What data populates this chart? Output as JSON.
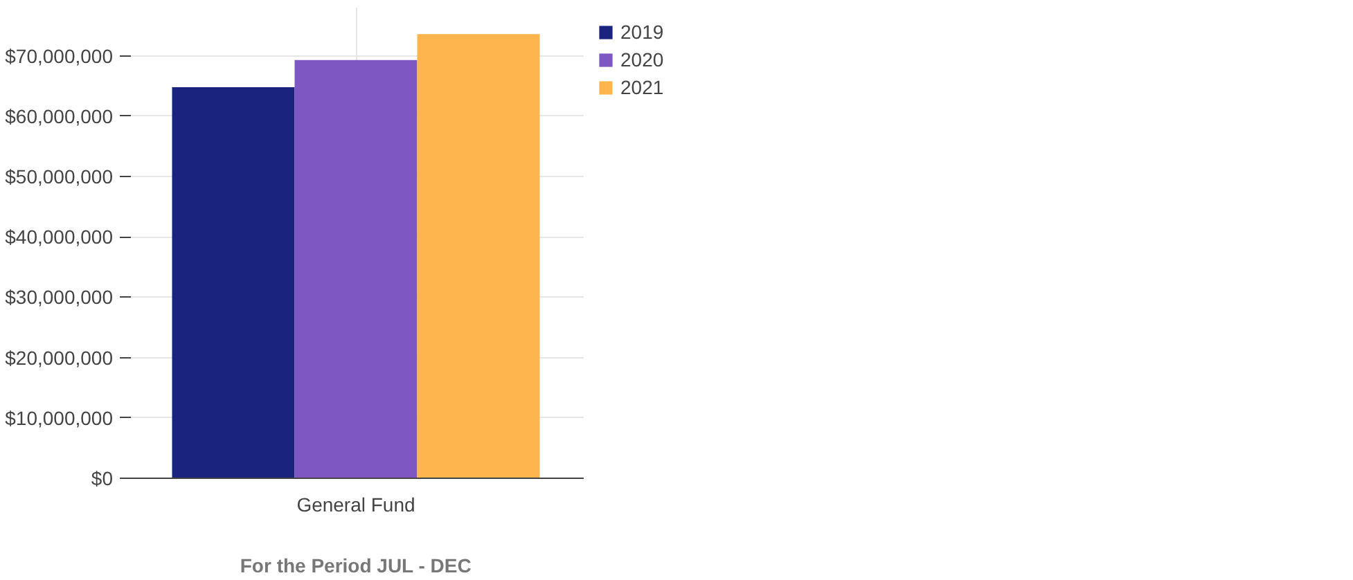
{
  "chart_data": {
    "type": "bar",
    "categories": [
      "General Fund"
    ],
    "xlabel": "For the Period JUL - DEC",
    "series": [
      {
        "name": "2019",
        "color": "#1a237e",
        "values": [
          64800000
        ]
      },
      {
        "name": "2020",
        "color": "#7e57c2",
        "values": [
          69300000
        ]
      },
      {
        "name": "2021",
        "color": "#ffb54d",
        "values": [
          73600000
        ]
      }
    ],
    "ylim": [
      0,
      78000000
    ],
    "yticks": [
      {
        "value": 0,
        "label": "$0"
      },
      {
        "value": 10000000,
        "label": "$10,000,000"
      },
      {
        "value": 20000000,
        "label": "$20,000,000"
      },
      {
        "value": 30000000,
        "label": "$30,000,000"
      },
      {
        "value": 40000000,
        "label": "$40,000,000"
      },
      {
        "value": 50000000,
        "label": "$50,000,000"
      },
      {
        "value": 60000000,
        "label": "$60,000,000"
      },
      {
        "value": 70000000,
        "label": "$70,000,000"
      }
    ],
    "grid": true,
    "legend": "top right"
  }
}
